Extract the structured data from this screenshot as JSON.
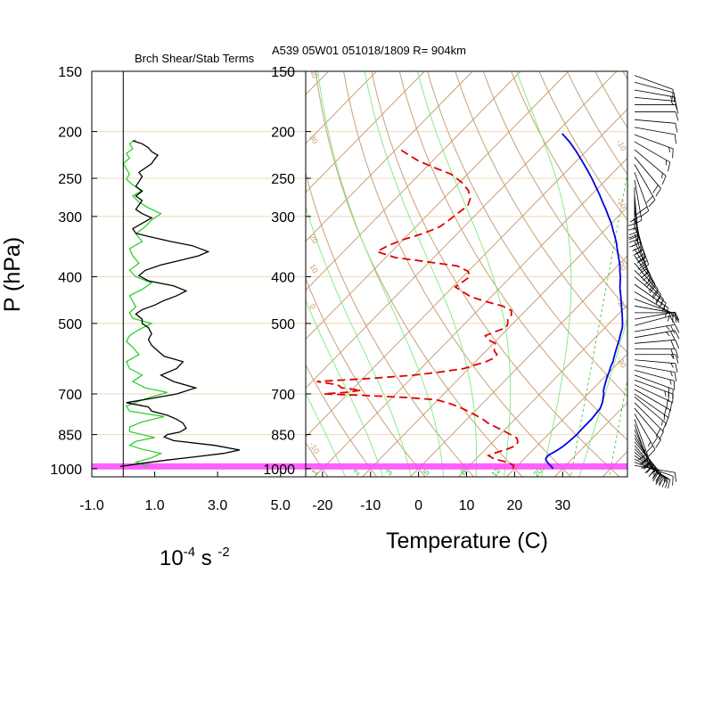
{
  "header": {
    "left_title": "Brch Shear/Stab Terms",
    "right_title": "A539 05W01 051018/1809 R= 904km"
  },
  "colors": {
    "adiabat": "#c8a078",
    "isobar": "#f0d8b8",
    "moist": "#7ee87e",
    "mixing": "#3cc83c",
    "temperature": "#0000e6",
    "dewpoint": "#e00000",
    "surface_band": "#ff44ff",
    "shear": "#000000",
    "stab": "#22cc22",
    "frame": "#000000"
  },
  "chart_data": [
    {
      "type": "line",
      "name": "branch-shear-stability-profile",
      "title": "Brch Shear/Stab Terms",
      "xlabel": "10-4 s -2",
      "xlabel_parts": {
        "base": "10",
        "exp1": "-4",
        "mid": " s ",
        "exp2": "-2"
      },
      "ylabel": "P (hPa)",
      "xlim": [
        -1.0,
        5.8
      ],
      "ylim": [
        1040,
        150
      ],
      "y_scale": "log",
      "xticks": [
        -1.0,
        1.0,
        3.0,
        5.0
      ],
      "xtick_labels": [
        "-1.0",
        "1.0",
        "3.0",
        "5.0"
      ],
      "yticks": [
        150,
        200,
        250,
        300,
        400,
        500,
        700,
        850,
        1000
      ],
      "ytick_labels": [
        "150",
        "200",
        "250",
        "300",
        "400",
        "500",
        "700",
        "850",
        "1000"
      ],
      "zero_line_x": 0,
      "series": [
        {
          "key": "shear",
          "p": [
            990,
            975,
            960,
            945,
            930,
            915,
            895,
            875,
            860,
            850,
            840,
            825,
            805,
            790,
            775,
            760,
            745,
            730,
            715,
            700,
            680,
            660,
            640,
            620,
            600,
            585,
            570,
            555,
            540,
            525,
            510,
            500,
            490,
            478,
            468,
            458,
            448,
            438,
            428,
            418,
            408,
            398,
            388,
            378,
            370,
            362,
            355,
            345,
            338,
            330,
            325,
            318,
            310,
            302,
            296,
            290,
            284,
            278,
            272,
            266,
            260,
            254,
            248,
            243,
            238,
            233,
            228,
            224,
            220,
            216,
            212,
            209
          ],
          "value": [
            -0.1,
            0.6,
            1.4,
            2.3,
            3.2,
            3.7,
            2.9,
            1.6,
            1.3,
            1.4,
            1.8,
            2.0,
            1.9,
            1.7,
            1.4,
            0.9,
            0.8,
            0.1,
            0.9,
            1.7,
            2.3,
            1.6,
            1.2,
            1.7,
            1.9,
            1.3,
            1.1,
            0.9,
            0.8,
            0.9,
            0.8,
            0.6,
            0.6,
            0.4,
            0.6,
            1.0,
            1.3,
            1.7,
            2.0,
            1.6,
            0.8,
            0.5,
            0.7,
            1.2,
            1.8,
            2.4,
            2.7,
            2.2,
            1.5,
            0.8,
            0.4,
            0.3,
            0.6,
            0.9,
            0.6,
            0.4,
            0.5,
            0.6,
            0.4,
            0.6,
            0.4,
            0.5,
            0.6,
            0.5,
            0.7,
            0.9,
            1.0,
            1.1,
            0.9,
            0.8,
            0.6,
            0.3
          ]
        },
        {
          "key": "stab",
          "p": [
            990,
            970,
            950,
            930,
            912,
            895,
            878,
            862,
            850,
            838,
            820,
            800,
            780,
            760,
            742,
            725,
            710,
            695,
            680,
            660,
            640,
            620,
            600,
            580,
            560,
            545,
            530,
            515,
            500,
            488,
            475,
            462,
            450,
            438,
            425,
            412,
            400,
            388,
            375,
            362,
            350,
            338,
            326,
            315,
            305,
            296,
            288,
            280,
            272,
            265,
            258,
            251,
            245,
            239,
            233,
            227,
            222,
            217,
            212,
            208
          ],
          "value": [
            0.8,
            0.4,
            0.9,
            1.2,
            0.6,
            0.2,
            0.4,
            1.0,
            0.6,
            0.2,
            0.2,
            0.6,
            1.3,
            0.2,
            0.1,
            0.5,
            0.9,
            1.4,
            0.7,
            0.3,
            0.6,
            0.2,
            0.1,
            0.5,
            0.3,
            0.1,
            0.2,
            0.5,
            0.9,
            0.3,
            0.2,
            0.4,
            0.3,
            0.2,
            0.6,
            0.9,
            0.4,
            0.2,
            0.5,
            0.3,
            0.2,
            0.6,
            0.4,
            0.7,
            0.9,
            1.2,
            0.8,
            0.5,
            0.3,
            0.6,
            0.3,
            0.1,
            0.2,
            0.1,
            0.0,
            0.2,
            0.1,
            0.3,
            0.2,
            0.4
          ]
        }
      ],
      "grid": false
    },
    {
      "type": "line",
      "name": "skew-t-log-p",
      "title": "A539 05W01 051018/1809 R= 904km",
      "xlabel": "Temperature (C)",
      "xlim": [
        -23.5,
        43.5
      ],
      "ylim": [
        1040,
        150
      ],
      "y_scale": "log",
      "xticks": [
        -20,
        -10,
        0,
        10,
        20,
        30
      ],
      "xtick_labels": [
        "-20",
        "-10",
        "0",
        "10",
        "20",
        "30"
      ],
      "yticks": [
        150,
        200,
        250,
        300,
        400,
        500,
        700,
        850,
        1000
      ],
      "ytick_labels": [
        "150",
        "200",
        "250",
        "300",
        "400",
        "500",
        "700",
        "850",
        "1000"
      ],
      "skew_reference_pressure": 1000,
      "mixing_ratio_labels": [
        "12",
        "16",
        "20",
        "24",
        "28",
        "32"
      ],
      "mixing_ratio_label_temps_at_220": [
        -20.5,
        -12.5,
        -3.5,
        6.5,
        17.5,
        29.5
      ],
      "moist_adiabat_labels": [
        "1",
        "2",
        "3",
        "5",
        "8",
        "12",
        "20"
      ],
      "moist_adiabat_label_temps_at_1000": [
        -16,
        -8,
        -2,
        5,
        12,
        18,
        26
      ],
      "dry_adiabat_labels": [
        "50",
        "60",
        "70",
        "80",
        "90",
        "100",
        "110",
        "120",
        "130",
        "140",
        "150"
      ],
      "dry_adiabat_label_temps_at_155": [
        -23.5,
        -16.5,
        -9.5,
        -3.5,
        2.5,
        7.5,
        12.5,
        19.5,
        26.0,
        31.5,
        38.0
      ],
      "left_edge_labels": [
        "40",
        "30",
        "20",
        "10",
        "0",
        "-10"
      ],
      "right_edge_labels": [
        "-10",
        "-10",
        "-20",
        "-20",
        "-30"
      ],
      "surface_band_hpa": [
        975,
        1000
      ],
      "series": [
        {
          "key": "temperature",
          "name": "",
          "p": [
            1000,
            985,
            970,
            955,
            940,
            925,
            910,
            895,
            880,
            865,
            850,
            830,
            810,
            790,
            770,
            750,
            730,
            710,
            700,
            690,
            675,
            660,
            645,
            630,
            615,
            600,
            585,
            570,
            555,
            540,
            525,
            510,
            500,
            490,
            478,
            466,
            455,
            444,
            433,
            422,
            411,
            400,
            390,
            380,
            370,
            360,
            350,
            340,
            330,
            320,
            310,
            300,
            290,
            280,
            270,
            260,
            250,
            240,
            230,
            220,
            210,
            202
          ],
          "t": [
            28.0,
            26.8,
            25.5,
            24.5,
            24.3,
            24.8,
            25.3,
            25.6,
            25.8,
            25.9,
            26.0,
            25.9,
            25.9,
            25.9,
            25.7,
            25.5,
            24.8,
            23.8,
            23.3,
            22.6,
            21.9,
            21.2,
            20.5,
            19.9,
            19.2,
            18.6,
            17.8,
            17.0,
            16.2,
            15.4,
            14.5,
            13.6,
            12.8,
            11.9,
            10.8,
            9.6,
            8.5,
            7.4,
            6.2,
            5.0,
            3.9,
            2.8,
            1.6,
            0.5,
            -0.8,
            -2.2,
            -3.6,
            -5.0,
            -6.6,
            -8.3,
            -10.0,
            -12.0,
            -14.0,
            -16.2,
            -18.4,
            -20.8,
            -23.3,
            -26.0,
            -28.9,
            -32.0,
            -35.4,
            -38.6
          ]
        },
        {
          "key": "dewpoint",
          "name": "",
          "p": [
            1000,
            985,
            970,
            955,
            940,
            925,
            910,
            895,
            880,
            865,
            850,
            835,
            820,
            805,
            790,
            775,
            760,
            745,
            732,
            720,
            712,
            705,
            700,
            695,
            688,
            680,
            670,
            660,
            650,
            640,
            630,
            620,
            610,
            600,
            590,
            580,
            570,
            560,
            550,
            540,
            530,
            520,
            510,
            500,
            490,
            480,
            470,
            460,
            450,
            440,
            430,
            420,
            410,
            400,
            390,
            380,
            372,
            365,
            355,
            345,
            335,
            325,
            315,
            305,
            295,
            285,
            275,
            265,
            255,
            245,
            238,
            230,
            224,
            218
          ],
          "t": [
            19.6,
            19.2,
            17.2,
            13.8,
            11.9,
            13.0,
            14.6,
            15.6,
            15.2,
            14.3,
            12.2,
            10.0,
            7.6,
            5.2,
            3.3,
            1.0,
            -1.5,
            -4.2,
            -7.0,
            -10.3,
            -17.0,
            -26.5,
            -35.0,
            -30.8,
            -28.0,
            -32.5,
            -34.0,
            -39.0,
            -28.5,
            -20.0,
            -15.0,
            -11.0,
            -9.5,
            -7.8,
            -7.0,
            -7.0,
            -8.3,
            -9.0,
            -9.6,
            -12.0,
            -13.3,
            -12.0,
            -10.6,
            -11.1,
            -12.0,
            -12.1,
            -13.0,
            -15.8,
            -20.3,
            -24.3,
            -26.9,
            -29.5,
            -29.0,
            -28.6,
            -30.0,
            -33.4,
            -41.0,
            -48.0,
            -53.0,
            -52.0,
            -50.0,
            -47.0,
            -45.0,
            -44.5,
            -44.0,
            -43.5,
            -44.5,
            -46.5,
            -49.5,
            -53.5,
            -58.0,
            -63.0,
            -66.0,
            -69.0
          ]
        }
      ],
      "grid": true
    }
  ],
  "wind_barbs": {
    "label": "",
    "p": [
      985,
      970,
      955,
      940,
      925,
      910,
      895,
      880,
      865,
      850,
      830,
      810,
      790,
      770,
      750,
      730,
      710,
      700,
      685,
      670,
      655,
      640,
      625,
      610,
      595,
      580,
      565,
      550,
      535,
      520,
      505,
      490,
      475,
      460,
      445,
      430,
      415,
      400,
      388,
      375,
      362,
      350,
      338,
      326,
      314,
      303,
      292,
      281,
      271,
      261,
      252,
      243,
      234,
      226,
      218,
      210,
      203,
      196,
      189,
      182,
      176,
      170,
      164,
      158,
      153
    ],
    "speed_kt": [
      12,
      14,
      16,
      18,
      20,
      22,
      25,
      25,
      28,
      30,
      30,
      32,
      28,
      25,
      22,
      20,
      18,
      18,
      20,
      22,
      25,
      20,
      18,
      15,
      15,
      18,
      20,
      22,
      25,
      25,
      20,
      15,
      12,
      10,
      10,
      12,
      15,
      18,
      20,
      22,
      25,
      25,
      28,
      30,
      30,
      32,
      35,
      30,
      28,
      25,
      25,
      22,
      20,
      20,
      18,
      15,
      15,
      12,
      10,
      10,
      12,
      15,
      15,
      12,
      10
    ],
    "direction_deg": [
      100,
      110,
      120,
      125,
      130,
      135,
      140,
      140,
      145,
      150,
      155,
      160,
      160,
      150,
      140,
      135,
      130,
      125,
      120,
      115,
      110,
      110,
      105,
      100,
      95,
      90,
      90,
      85,
      80,
      80,
      75,
      80,
      90,
      100,
      110,
      120,
      125,
      130,
      135,
      140,
      145,
      150,
      155,
      160,
      160,
      165,
      170,
      175,
      175,
      180,
      170,
      160,
      150,
      140,
      130,
      120,
      110,
      100,
      95,
      90,
      90,
      95,
      100,
      105,
      110
    ]
  }
}
